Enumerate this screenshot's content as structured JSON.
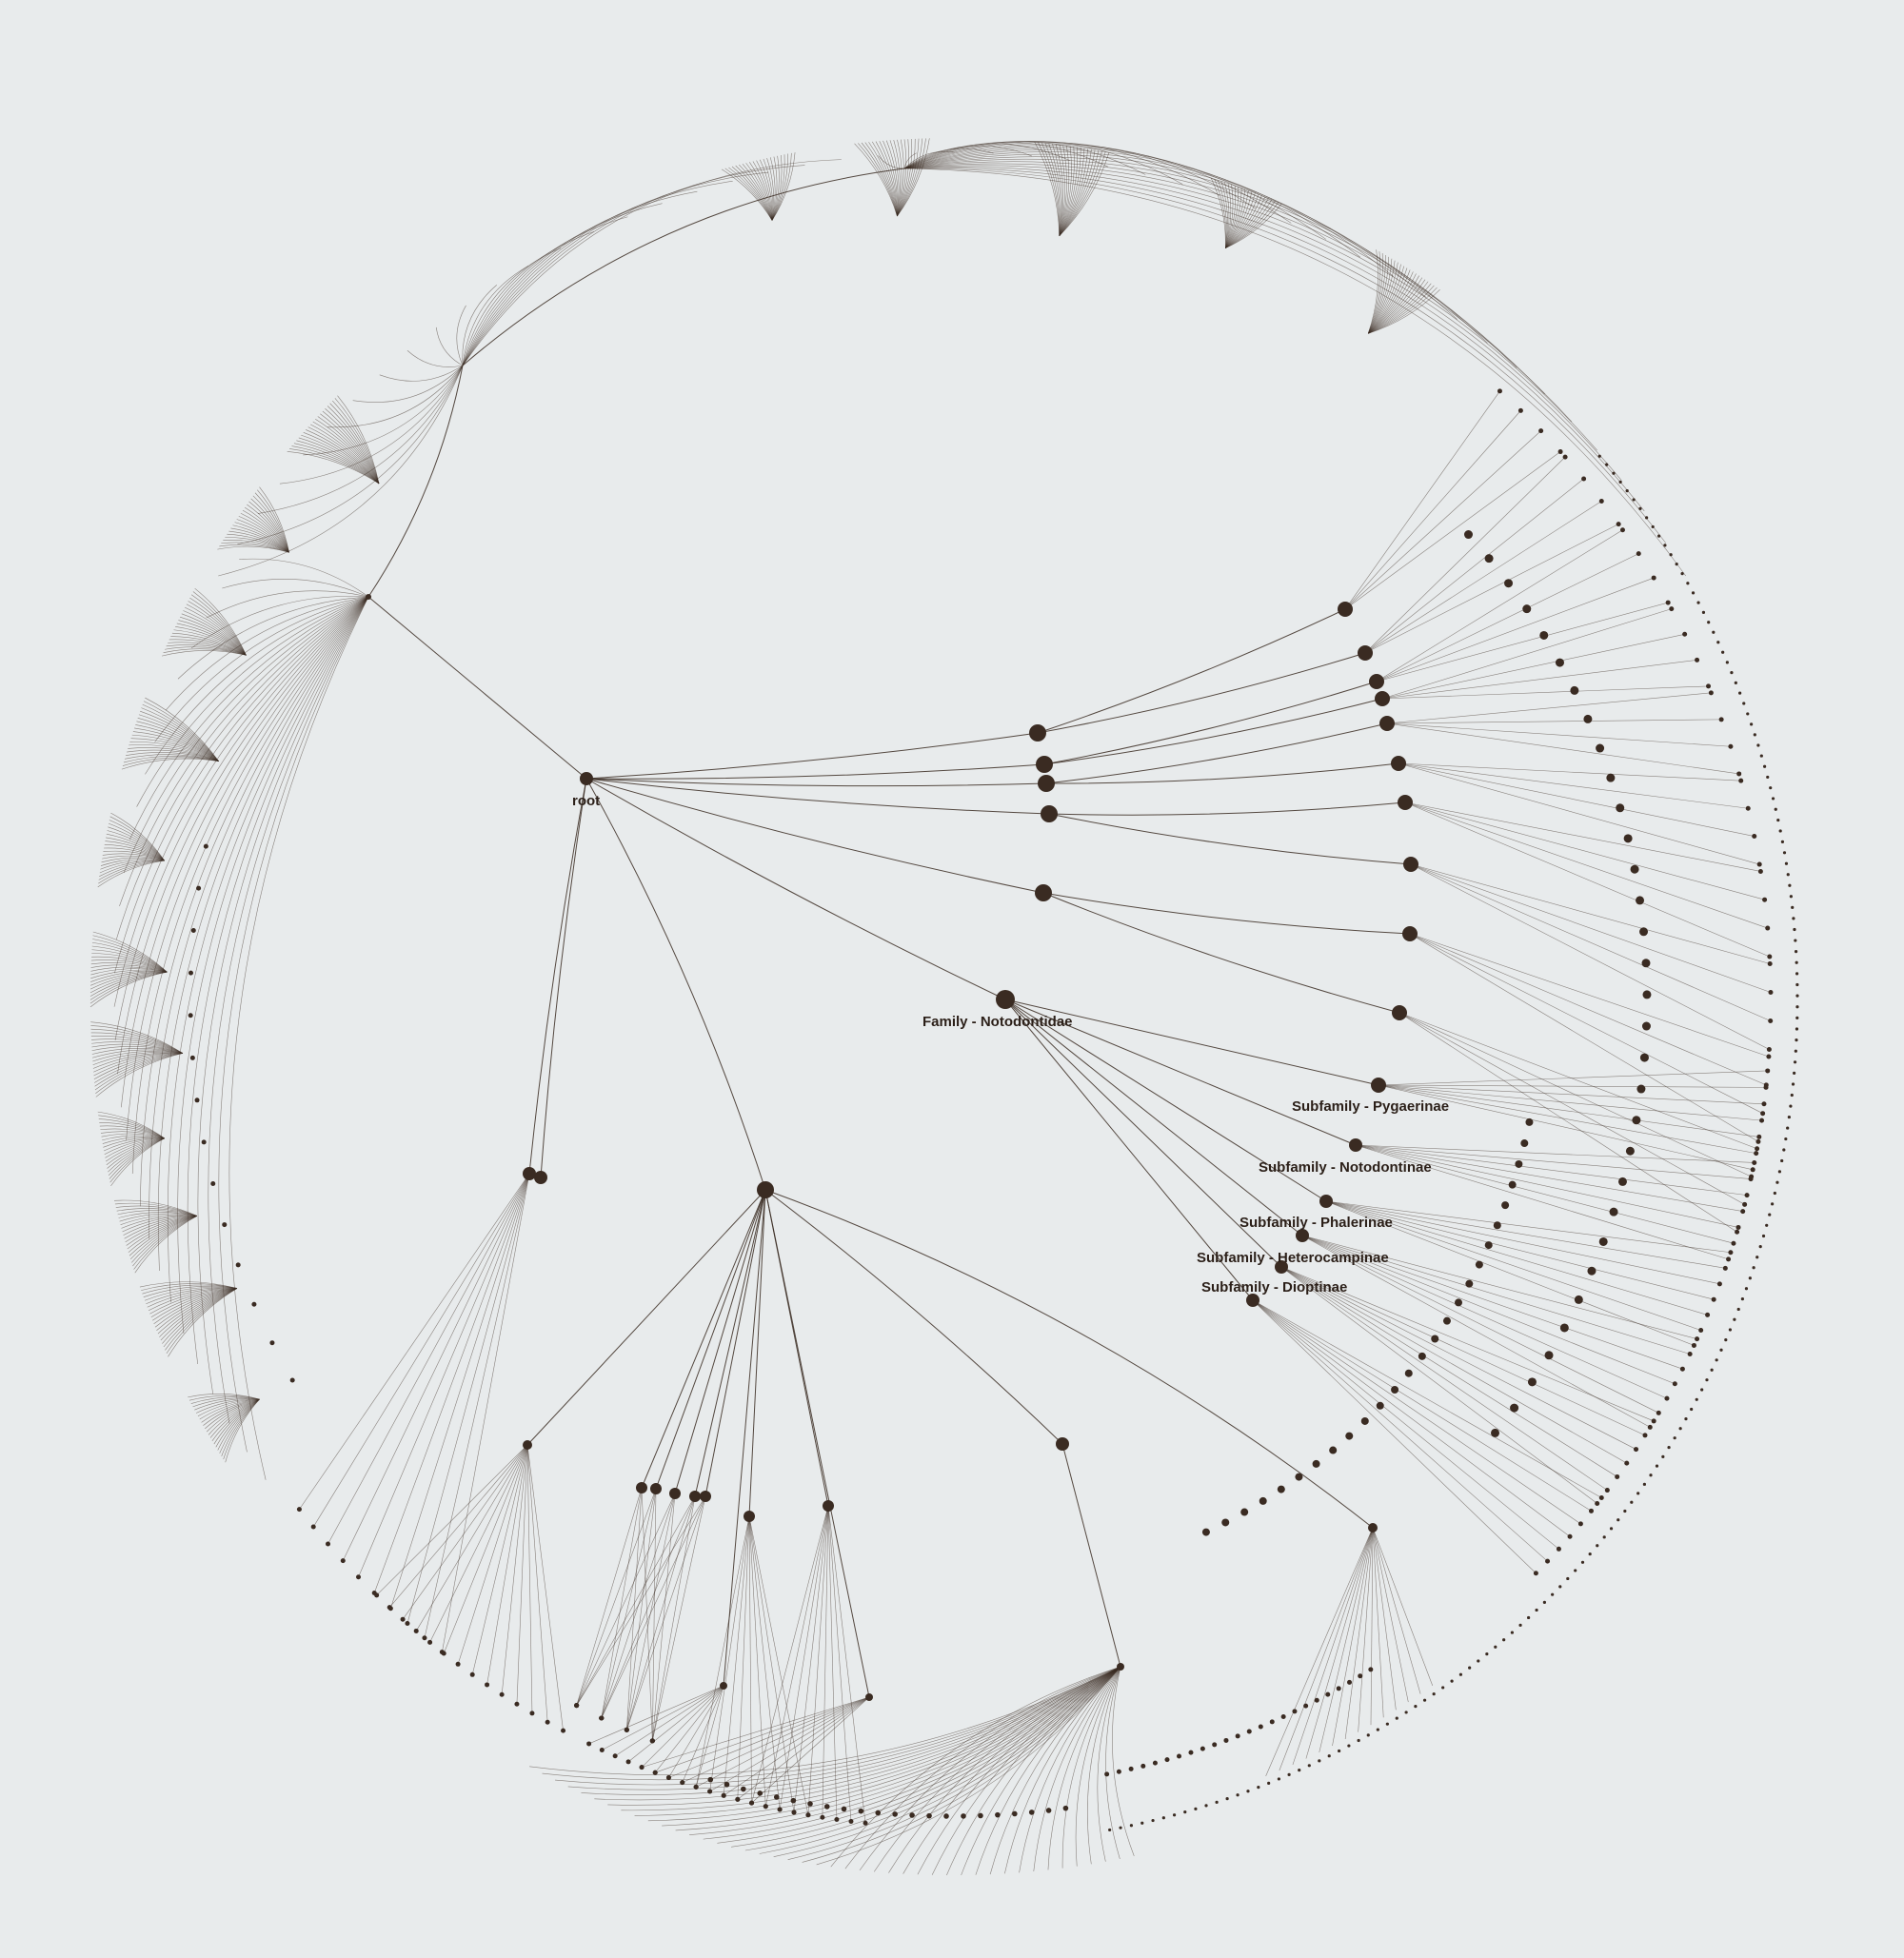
{
  "diagram": {
    "type": "radial-tree",
    "colors": {
      "background": "#e8ebec",
      "ink": "#3a2b22"
    },
    "labels": {
      "root": "root",
      "family": "Family - Notodontidae",
      "sub_pygaerinae": "Subfamily - Pygaerinae",
      "sub_notodontinae": "Subfamily - Notodontinae",
      "sub_phalerinae": "Subfamily - Phalerinae",
      "sub_heterocampinae": "Subfamily - Heterocampinae",
      "sub_dioptinae": "Subfamily - Dioptinae"
    }
  }
}
